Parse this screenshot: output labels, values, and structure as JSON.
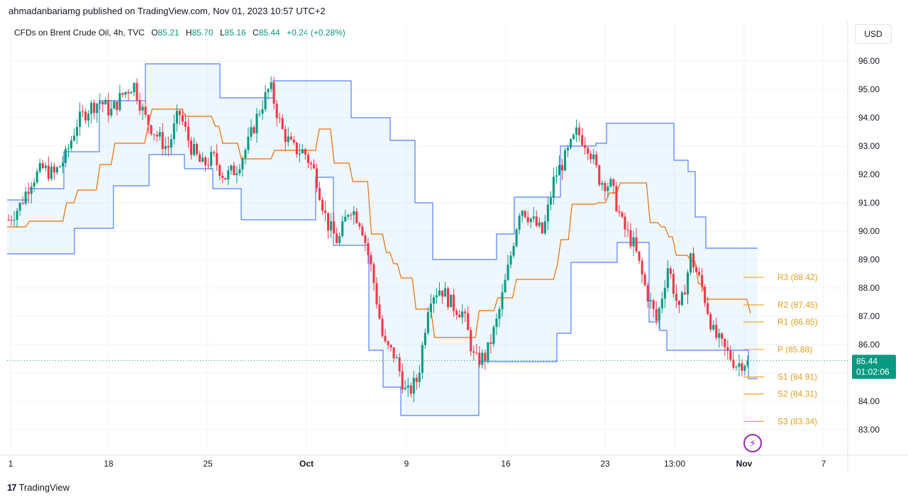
{
  "header": {
    "publisher": "ahmadanbariamg published on TradingView.com, Nov 01, 2023 10:57 UTC+2"
  },
  "legend": {
    "symbol": "CFDs on Brent Crude Oil, 4h, TVC",
    "o_label": "O",
    "o": "85.21",
    "h_label": "H",
    "h": "85.70",
    "l_label": "L",
    "l": "85.16",
    "c_label": "C",
    "c": "85.44",
    "change": "+0.24 (+0.28%)"
  },
  "currency": "USD",
  "footer": {
    "logo": "17",
    "brand": "TradingView"
  },
  "price_tag": {
    "price": "85.44",
    "countdown": "01:02:06"
  },
  "colors": {
    "up": "#089981",
    "down": "#f23645",
    "channel": "#2962ff",
    "basis": "#ef6c00",
    "pivot": "#f5a623"
  },
  "chart_data": {
    "type": "candlestick",
    "interval": "4h",
    "ylim": [
      82.5,
      96.5
    ],
    "y_ticks": [
      "96.00",
      "95.00",
      "94.00",
      "93.00",
      "92.00",
      "91.00",
      "90.00",
      "89.00",
      "88.00",
      "87.00",
      "86.00",
      "84.00",
      "83.00"
    ],
    "x_ticks": [
      "1",
      "18",
      "25",
      "Oct",
      "9",
      "16",
      "23",
      "13:00",
      "Nov",
      "7"
    ],
    "current_price": 85.44,
    "pivots": [
      {
        "label": "R3 (88.42)",
        "value": 88.42
      },
      {
        "label": "R2 (87.45)",
        "value": 87.45
      },
      {
        "label": "R1 (86.85)",
        "value": 86.85
      },
      {
        "label": "P (85.88)",
        "value": 85.88
      },
      {
        "label": "S1 (84.91)",
        "value": 84.91
      },
      {
        "label": "S2 (84.31)",
        "value": 84.31
      },
      {
        "label": "S3 (83.34)",
        "value": 83.34
      }
    ],
    "close_path": [
      90.4,
      90.9,
      91.8,
      92.2,
      92.0,
      92.6,
      93.8,
      94.3,
      94.6,
      94.2,
      94.8,
      95.2,
      94.0,
      93.4,
      92.9,
      94.2,
      93.0,
      92.3,
      92.6,
      91.9,
      92.2,
      93.0,
      94.2,
      95.1,
      93.6,
      92.9,
      92.8,
      92.0,
      90.3,
      89.6,
      90.9,
      90.3,
      88.5,
      86.0,
      85.6,
      84.2,
      84.8,
      87.7,
      88.0,
      87.4,
      87.1,
      85.4,
      85.6,
      86.9,
      88.8,
      90.9,
      90.4,
      89.9,
      91.9,
      92.6,
      93.5,
      93.0,
      91.8,
      91.6,
      90.2,
      89.5,
      88.0,
      86.8,
      88.8,
      87.1,
      89.1,
      88.0,
      86.4,
      85.8,
      85.3,
      85.44
    ],
    "donchian_upper": [
      [
        0,
        91.1
      ],
      [
        30,
        91.5
      ],
      [
        80,
        92.8
      ],
      [
        130,
        94.6
      ],
      [
        195,
        95.9
      ],
      [
        290,
        95.9
      ],
      [
        300,
        94.7
      ],
      [
        340,
        94.7
      ],
      [
        375,
        95.3
      ],
      [
        475,
        95.3
      ],
      [
        485,
        94.0
      ],
      [
        510,
        94.0
      ],
      [
        540,
        93.2
      ],
      [
        575,
        91.0
      ],
      [
        600,
        89.0
      ],
      [
        670,
        89.0
      ],
      [
        690,
        89.9
      ],
      [
        715,
        91.2
      ],
      [
        770,
        91.2
      ],
      [
        780,
        93.0
      ],
      [
        830,
        93.1
      ],
      [
        845,
        93.8
      ],
      [
        930,
        93.8
      ],
      [
        940,
        92.5
      ],
      [
        960,
        92.1
      ],
      [
        970,
        90.5
      ],
      [
        985,
        89.4
      ],
      [
        1058,
        89.4
      ]
    ],
    "donchian_lower": [
      [
        0,
        89.2
      ],
      [
        80,
        89.2
      ],
      [
        95,
        90.1
      ],
      [
        140,
        90.1
      ],
      [
        150,
        91.6
      ],
      [
        185,
        91.6
      ],
      [
        200,
        92.7
      ],
      [
        240,
        92.7
      ],
      [
        250,
        92.2
      ],
      [
        285,
        92.2
      ],
      [
        290,
        91.5
      ],
      [
        320,
        91.5
      ],
      [
        330,
        90.4
      ],
      [
        420,
        90.4
      ],
      [
        435,
        91.9
      ],
      [
        445,
        91.9
      ],
      [
        460,
        89.5
      ],
      [
        500,
        89.5
      ],
      [
        510,
        85.8
      ],
      [
        520,
        85.8
      ],
      [
        530,
        84.5
      ],
      [
        555,
        83.5
      ],
      [
        655,
        83.5
      ],
      [
        665,
        85.4
      ],
      [
        760,
        85.4
      ],
      [
        775,
        86.4
      ],
      [
        795,
        88.9
      ],
      [
        850,
        88.9
      ],
      [
        860,
        89.6
      ],
      [
        890,
        89.6
      ],
      [
        905,
        86.8
      ],
      [
        920,
        86.5
      ],
      [
        930,
        85.8
      ],
      [
        1035,
        85.8
      ],
      [
        1045,
        84.8
      ],
      [
        1058,
        84.8
      ]
    ]
  }
}
